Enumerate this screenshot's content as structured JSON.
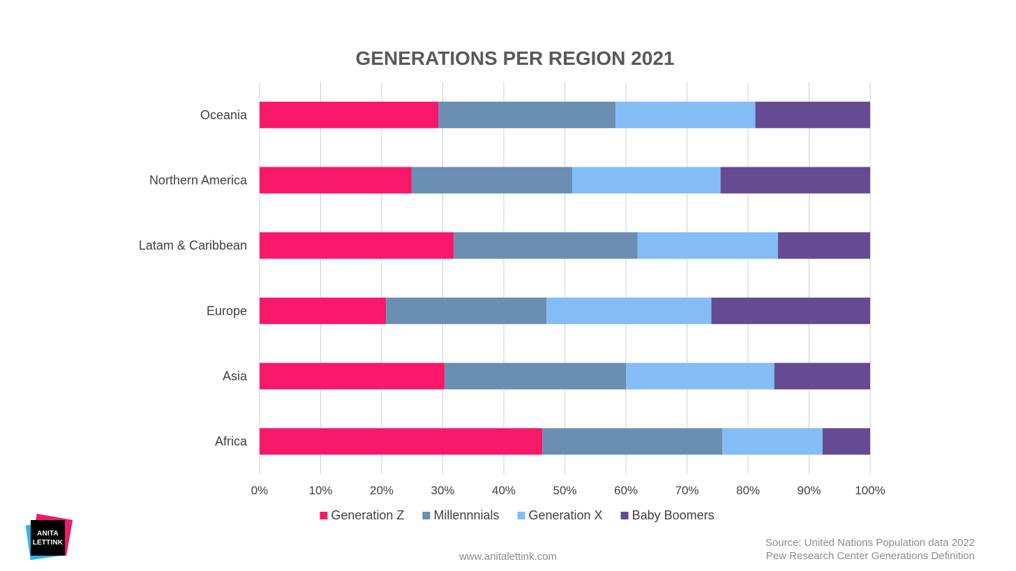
{
  "chart_data": {
    "type": "bar",
    "orientation": "horizontal",
    "stacked": "percent",
    "title": "GENERATIONS PER REGION 2021",
    "categories": [
      "Oceania",
      "Northern America",
      "Latam & Caribbean",
      "Europe",
      "Asia",
      "Africa"
    ],
    "series": [
      {
        "name": "Generation Z",
        "color": "#f7186a",
        "values": [
          29.3,
          24.9,
          31.8,
          20.7,
          30.3,
          46.3
        ]
      },
      {
        "name": "Millennnials",
        "color": "#6b8eb3",
        "values": [
          29.0,
          26.3,
          30.1,
          26.3,
          29.7,
          29.5
        ]
      },
      {
        "name": "Generation X",
        "color": "#84bdf5",
        "values": [
          22.9,
          24.3,
          23.0,
          27.0,
          24.3,
          16.4
        ]
      },
      {
        "name": "Baby Boomers",
        "color": "#654b92",
        "values": [
          18.8,
          24.5,
          15.1,
          26.0,
          15.7,
          7.8
        ]
      }
    ],
    "xlim": [
      0,
      100
    ],
    "x_ticks": [
      "0%",
      "10%",
      "20%",
      "30%",
      "40%",
      "50%",
      "60%",
      "70%",
      "80%",
      "90%",
      "100%"
    ],
    "grid": true,
    "legend_position": "bottom"
  },
  "footer": {
    "website": "www.anitalettink.com",
    "source_line1": "Source: United Nations Population data 2022",
    "source_line2": "Pew Research Center Generations Definition"
  },
  "logo": {
    "line1": "ANITA",
    "line2": "LETTINK"
  }
}
